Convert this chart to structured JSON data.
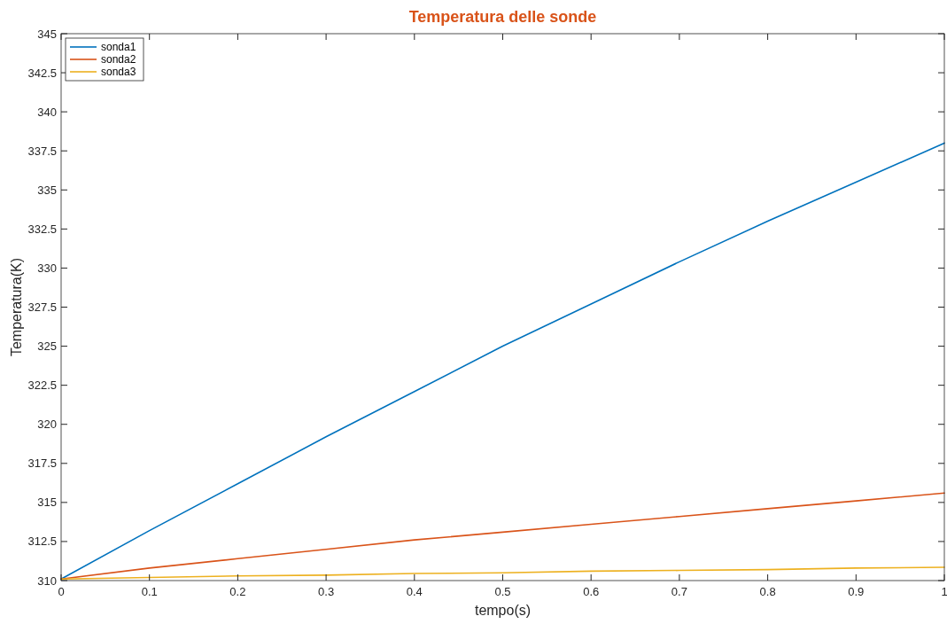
{
  "chart_data": {
    "type": "line",
    "title": "Temperatura delle sonde",
    "xlabel": "tempo(s)",
    "ylabel": "Temperatura(K)",
    "x": [
      0,
      0.1,
      0.2,
      0.3,
      0.4,
      0.5,
      0.6,
      0.7,
      0.8,
      0.9,
      1
    ],
    "series": [
      {
        "name": "sonda1",
        "color": "#0072bd",
        "values": [
          310.1,
          313.2,
          316.2,
          319.2,
          322.1,
          325.0,
          327.7,
          330.4,
          333.0,
          335.5,
          338.0
        ]
      },
      {
        "name": "sonda2",
        "color": "#d95319",
        "values": [
          310.1,
          310.8,
          311.4,
          312.0,
          312.6,
          313.1,
          313.6,
          314.1,
          314.6,
          315.1,
          315.6
        ]
      },
      {
        "name": "sonda3",
        "color": "#edb120",
        "values": [
          310.1,
          310.2,
          310.3,
          310.35,
          310.45,
          310.5,
          310.6,
          310.65,
          310.7,
          310.8,
          310.85
        ]
      }
    ],
    "xlim": [
      0,
      1
    ],
    "xticks": [
      0,
      0.1,
      0.2,
      0.3,
      0.4,
      0.5,
      0.6,
      0.7,
      0.8,
      0.9,
      1
    ],
    "ylim": [
      310,
      345
    ],
    "yticks": [
      310,
      312.5,
      315,
      317.5,
      320,
      322.5,
      325,
      327.5,
      330,
      332.5,
      335,
      337.5,
      340,
      342.5,
      345
    ],
    "grid": false,
    "legend": "top left",
    "marker": "none",
    "line_style": "solid"
  }
}
